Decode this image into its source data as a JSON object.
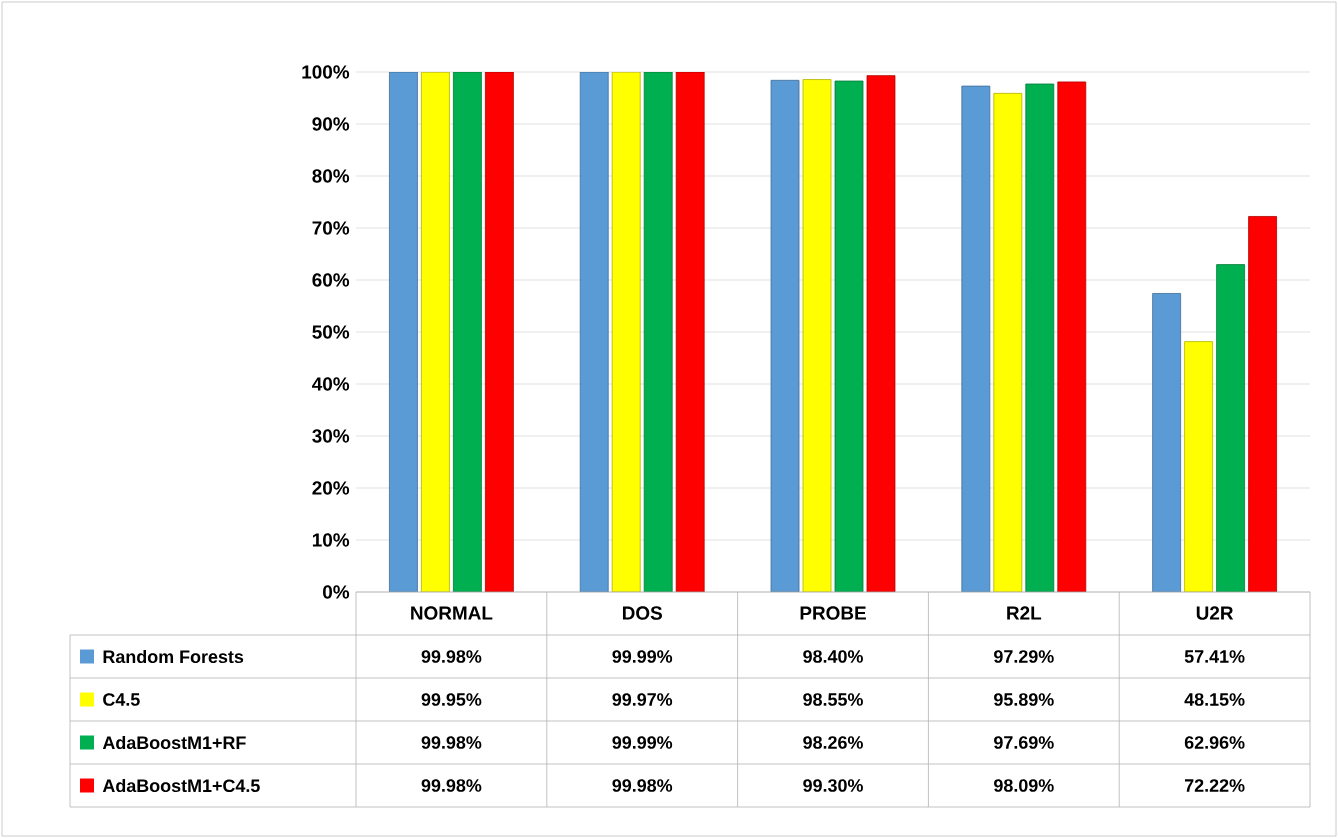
{
  "chart_data": {
    "type": "bar",
    "categories": [
      "NORMAL",
      "DOS",
      "PROBE",
      "R2L",
      "U2R"
    ],
    "series": [
      {
        "name": "Random Forests",
        "color": "#5b9bd5",
        "values": [
          99.98,
          99.99,
          98.4,
          97.29,
          57.41
        ],
        "value_labels": [
          "99.98%",
          "99.99%",
          "98.40%",
          "97.29%",
          "57.41%"
        ]
      },
      {
        "name": "C4.5",
        "color": "#ffff00",
        "values": [
          99.95,
          99.97,
          98.55,
          95.89,
          48.15
        ],
        "value_labels": [
          "99.95%",
          "99.97%",
          "98.55%",
          "95.89%",
          "48.15%"
        ]
      },
      {
        "name": "AdaBoostM1+RF",
        "color": "#00b050",
        "values": [
          99.98,
          99.99,
          98.26,
          97.69,
          62.96
        ],
        "value_labels": [
          "99.98%",
          "99.99%",
          "98.26%",
          "97.69%",
          "62.96%"
        ]
      },
      {
        "name": "AdaBoostM1+C4.5",
        "color": "#ff0000",
        "values": [
          99.98,
          99.98,
          99.3,
          98.09,
          72.22
        ],
        "value_labels": [
          "99.98%",
          "99.98%",
          "99.30%",
          "98.09%",
          "72.22%"
        ]
      }
    ],
    "ylim": [
      0,
      100
    ],
    "yticks": [
      {
        "value": 0,
        "label": "0%"
      },
      {
        "value": 10,
        "label": "10%"
      },
      {
        "value": 20,
        "label": "20%"
      },
      {
        "value": 30,
        "label": "30%"
      },
      {
        "value": 40,
        "label": "40%"
      },
      {
        "value": 50,
        "label": "50%"
      },
      {
        "value": 60,
        "label": "60%"
      },
      {
        "value": 70,
        "label": "70%"
      },
      {
        "value": 80,
        "label": "80%"
      },
      {
        "value": 90,
        "label": "90%"
      },
      {
        "value": 100,
        "label": "100%"
      }
    ],
    "grid": "y",
    "legend": "bottom"
  }
}
